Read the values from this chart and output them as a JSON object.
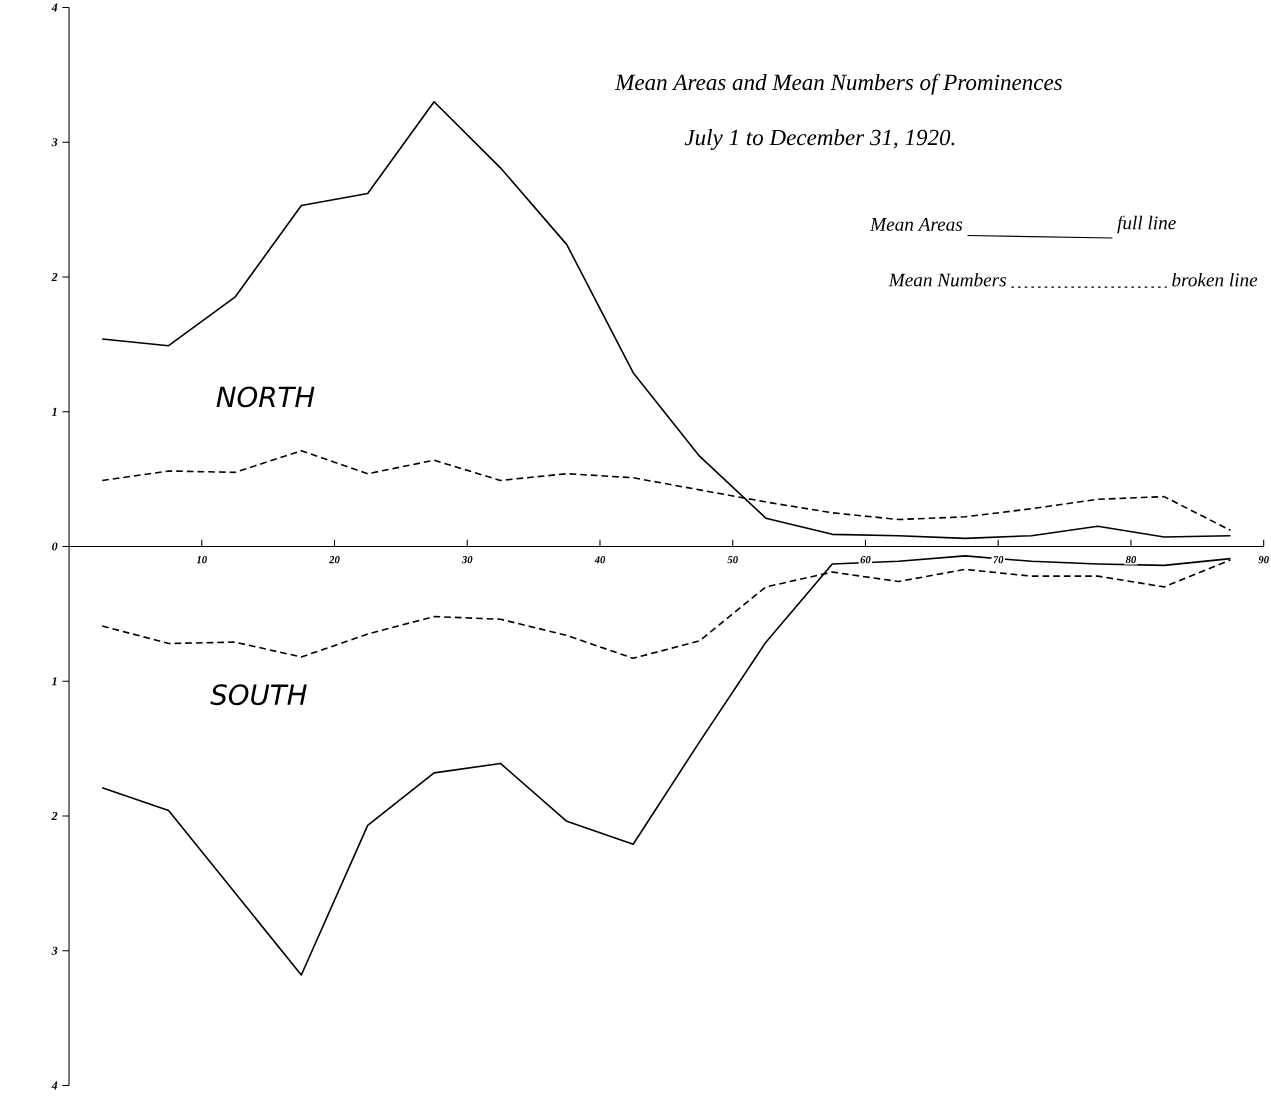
{
  "chart_data": {
    "type": "line",
    "title": "Mean Areas and Mean Numbers of Prominences",
    "subtitle": "July 1 to December 31, 1920.",
    "annotations": [
      "Mean Areas",
      "full line",
      "Mean Numbers",
      "broken line",
      "NORTH",
      "SOUTH"
    ],
    "xlim": [
      0,
      90
    ],
    "xticks": [
      10,
      20,
      30,
      40,
      50,
      60,
      70,
      80,
      90
    ],
    "ylim": [
      -4,
      4
    ],
    "yticks": [
      {
        "value": -4,
        "label": "4"
      },
      {
        "value": -3,
        "label": "3"
      },
      {
        "value": -2,
        "label": "2"
      },
      {
        "value": -1,
        "label": "1"
      },
      0,
      1,
      2,
      3,
      4
    ],
    "marker": "none",
    "series": [
      {
        "color": "#000000",
        "line_style": "solid",
        "x": [
          2.5,
          7.5,
          12.5,
          17.5,
          22.5,
          27.5,
          32.5,
          37.5,
          42.5,
          47.5,
          52.5,
          57.5,
          62.5,
          67.5,
          72.5,
          77.5,
          82.5,
          87.5
        ],
        "values": [
          1.54,
          1.49,
          1.85,
          2.53,
          2.62,
          3.3,
          2.81,
          2.24,
          1.29,
          0.67,
          0.21,
          0.09,
          0.08,
          0.06,
          0.08,
          0.15,
          0.07,
          0.08
        ]
      },
      {
        "color": "#000000",
        "line_style": "dashed",
        "x": [
          2.5,
          7.5,
          12.5,
          17.5,
          22.5,
          27.5,
          32.5,
          37.5,
          42.5,
          47.5,
          52.5,
          57.5,
          62.5,
          67.5,
          72.5,
          77.5,
          82.5,
          87.5
        ],
        "values": [
          0.49,
          0.56,
          0.55,
          0.71,
          0.54,
          0.64,
          0.49,
          0.54,
          0.51,
          0.42,
          0.33,
          0.25,
          0.2,
          0.22,
          0.28,
          0.35,
          0.37,
          0.12
        ]
      },
      {
        "color": "#000000",
        "line_style": "solid",
        "x": [
          2.5,
          7.5,
          17.5,
          22.5,
          27.5,
          32.5,
          37.5,
          42.5,
          47.5,
          52.5,
          57.5,
          62.5,
          67.5,
          72.5,
          77.5,
          82.5,
          87.5
        ],
        "values": [
          -1.79,
          -1.96,
          -3.18,
          -2.07,
          -1.68,
          -1.61,
          -2.04,
          -2.21,
          -1.45,
          -0.71,
          -0.13,
          -0.11,
          -0.07,
          -0.11,
          -0.13,
          -0.14,
          -0.09
        ]
      },
      {
        "color": "#000000",
        "line_style": "dashed",
        "x": [
          2.5,
          7.5,
          12.5,
          17.5,
          22.5,
          27.5,
          32.5,
          37.5,
          42.5,
          47.5,
          52.5,
          57.5,
          62.5,
          67.5,
          72.5,
          77.5,
          82.5,
          87.5
        ],
        "values": [
          -0.59,
          -0.72,
          -0.71,
          -0.82,
          -0.65,
          -0.52,
          -0.54,
          -0.66,
          -0.83,
          -0.7,
          -0.3,
          -0.19,
          -0.26,
          -0.17,
          -0.22,
          -0.22,
          -0.3,
          -0.1
        ]
      }
    ]
  }
}
